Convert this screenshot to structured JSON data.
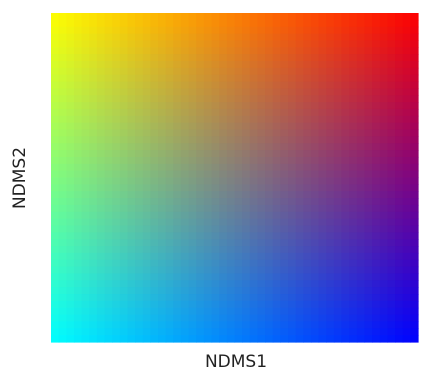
{
  "chart_data": {
    "type": "heatmap",
    "title": "",
    "xlabel": "NDMS1",
    "ylabel": "NDMS2",
    "legend": "none",
    "grid": false,
    "corner_colors": {
      "top_left": "#ffff00",
      "top_right": "#ff0000",
      "bottom_left": "#00ffff",
      "bottom_right": "#0000ff"
    }
  }
}
